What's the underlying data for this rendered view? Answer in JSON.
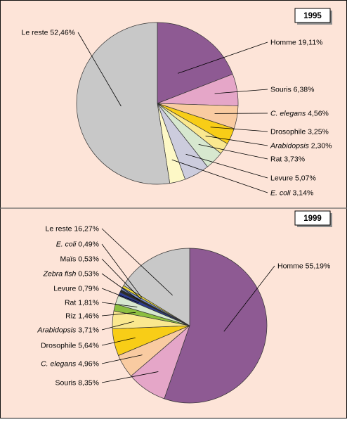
{
  "colors": {
    "background": "#fde4d8",
    "panel_border": "#111111",
    "divider": "#666666",
    "badge_fill": "#ffffff",
    "badge_shadow": "#8f8f8f"
  },
  "chart_data": [
    {
      "type": "pie",
      "title": "1995",
      "unit": "%",
      "slices": [
        {
          "label": "Homme",
          "italic": false,
          "value": 19.11,
          "value_text": "19,11%",
          "color": "#8e5a93"
        },
        {
          "label": "Souris",
          "italic": false,
          "value": 6.38,
          "value_text": "6,38%",
          "color": "#e5a6c8"
        },
        {
          "label": "C. elegans",
          "italic": true,
          "value": 4.56,
          "value_text": "4,56%",
          "color": "#f9cba1"
        },
        {
          "label": "Drosophile",
          "italic": false,
          "value": 3.25,
          "value_text": "3,25%",
          "color": "#f8cd17"
        },
        {
          "label": "Arabidopsis",
          "italic": true,
          "value": 2.3,
          "value_text": "2,30%",
          "color": "#fae88f"
        },
        {
          "label": "Rat",
          "italic": false,
          "value": 3.73,
          "value_text": "3,73%",
          "color": "#d7e8cf"
        },
        {
          "label": "Levure",
          "italic": false,
          "value": 5.07,
          "value_text": "5,07%",
          "color": "#ccccdd"
        },
        {
          "label": "E. coli",
          "italic": true,
          "value": 3.14,
          "value_text": "3,14%",
          "color": "#fdf8c6"
        },
        {
          "label": "Le reste",
          "italic": false,
          "value": 52.46,
          "value_text": "52,46%",
          "color": "#c8c8c8"
        }
      ]
    },
    {
      "type": "pie",
      "title": "1999",
      "unit": "%",
      "slices": [
        {
          "label": "Homme",
          "italic": false,
          "value": 55.19,
          "value_text": "55,19%",
          "color": "#8e5a93"
        },
        {
          "label": "Souris",
          "italic": false,
          "value": 8.35,
          "value_text": "8,35%",
          "color": "#e5a6c8"
        },
        {
          "label": "C. elegans",
          "italic": true,
          "value": 4.96,
          "value_text": "4,96%",
          "color": "#f9cba1"
        },
        {
          "label": "Drosophile",
          "italic": false,
          "value": 5.64,
          "value_text": "5,64%",
          "color": "#f8cd17"
        },
        {
          "label": "Arabidopsis",
          "italic": true,
          "value": 3.71,
          "value_text": "3,71%",
          "color": "#fae88f"
        },
        {
          "label": "Riz",
          "italic": false,
          "value": 1.46,
          "value_text": "1,46%",
          "color": "#8cbf3f"
        },
        {
          "label": "Rat",
          "italic": false,
          "value": 1.81,
          "value_text": "1,81%",
          "color": "#d7e8cf"
        },
        {
          "label": "Levure",
          "italic": false,
          "value": 0.79,
          "value_text": "0,79%",
          "color": "#2d3c8f"
        },
        {
          "label": "Zebra fish",
          "italic": true,
          "value": 0.53,
          "value_text": "0,53%",
          "color": "#2a2a2a"
        },
        {
          "label": "Maïs",
          "italic": false,
          "value": 0.53,
          "value_text": "0,53%",
          "color": "#7a8fc8"
        },
        {
          "label": "E. coli",
          "italic": true,
          "value": 0.49,
          "value_text": "0,49%",
          "color": "#f3df3a"
        },
        {
          "label": "Le reste",
          "italic": false,
          "value": 16.27,
          "value_text": "16,27%",
          "color": "#c8c8c8"
        }
      ]
    }
  ]
}
